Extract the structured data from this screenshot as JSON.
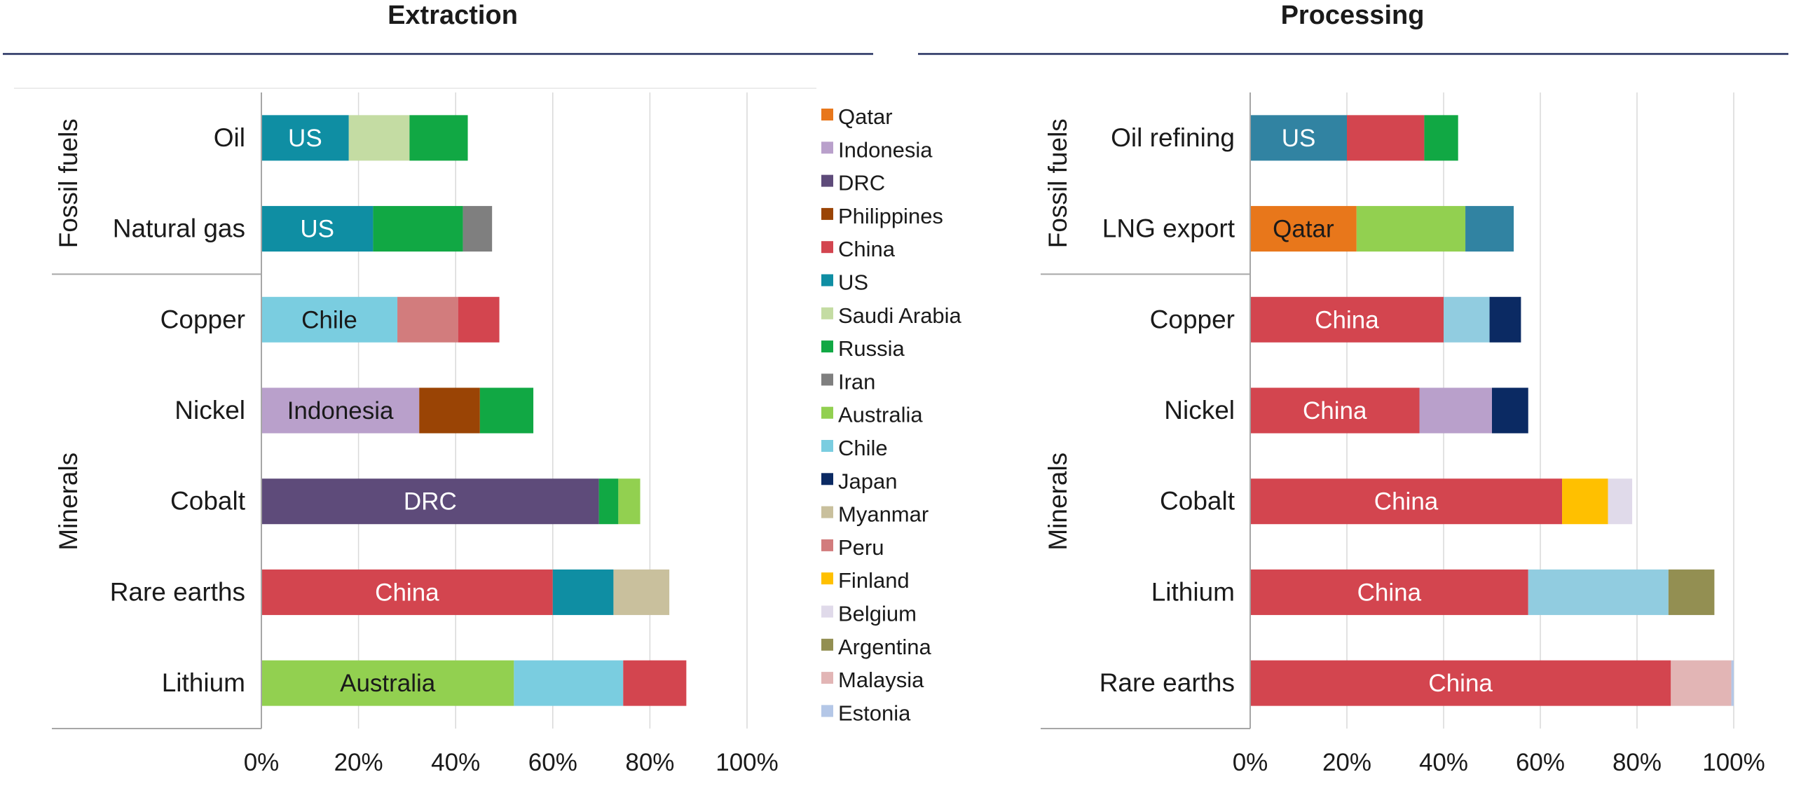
{
  "headers": {
    "left": "Extraction",
    "right": "Processing"
  },
  "colors": {
    "Qatar": "#E8771B",
    "Indonesia": "#B9A0CB",
    "DRC": "#5E4B7A",
    "Philippines": "#9A4405",
    "China": "#D3454F",
    "US": "#0F8EA3",
    "US_processing": "#3183A2",
    "Saudi Arabia": "#C4DCA3",
    "Russia": "#11A844",
    "Iran": "#7F7F7F",
    "Australia": "#92D050",
    "Chile": "#7ACDE0",
    "Chile_processing": "#91CCE0",
    "Japan": "#0B2A63",
    "Myanmar": "#C9C09D",
    "Peru": "#D27C7D",
    "Finland": "#FFC000",
    "Belgium": "#E0DAEA",
    "Argentina": "#938F52",
    "Malaysia": "#E2B5B5",
    "Estonia": "#B4C7E7"
  },
  "legend": [
    "Qatar",
    "Indonesia",
    "DRC",
    "Philippines",
    "China",
    "US",
    "Saudi Arabia",
    "Russia",
    "Iran",
    "Australia",
    "Chile",
    "Japan",
    "Myanmar",
    "Peru",
    "Finland",
    "Belgium",
    "Argentina",
    "Malaysia",
    "Estonia"
  ],
  "chart_data": [
    {
      "type": "bar",
      "orientation": "horizontal",
      "stacked": true,
      "title": "Extraction",
      "xlim": [
        0,
        100
      ],
      "x_ticks": [
        "0%",
        "20%",
        "40%",
        "60%",
        "80%",
        "100%"
      ],
      "grid": true,
      "groups": [
        {
          "label": "Fossil fuels",
          "categories": [
            "Oil",
            "Natural gas"
          ]
        },
        {
          "label": "Minerals",
          "categories": [
            "Copper",
            "Nickel",
            "Cobalt",
            "Rare earths",
            "Lithium"
          ]
        }
      ],
      "categories": [
        "Oil",
        "Natural gas",
        "Copper",
        "Nickel",
        "Cobalt",
        "Rare earths",
        "Lithium"
      ],
      "bars": [
        {
          "category": "Oil",
          "segments": [
            {
              "country": "US",
              "value": 18,
              "label": "US"
            },
            {
              "country": "Saudi Arabia",
              "value": 12.5
            },
            {
              "country": "Russia",
              "value": 12
            }
          ]
        },
        {
          "category": "Natural gas",
          "segments": [
            {
              "country": "US",
              "value": 23,
              "label": "US"
            },
            {
              "country": "Russia",
              "value": 18.5
            },
            {
              "country": "Iran",
              "value": 6
            }
          ]
        },
        {
          "category": "Copper",
          "segments": [
            {
              "country": "Chile",
              "value": 28,
              "label": "Chile"
            },
            {
              "country": "Peru",
              "value": 12.5
            },
            {
              "country": "China",
              "value": 8.5
            }
          ]
        },
        {
          "category": "Nickel",
          "segments": [
            {
              "country": "Indonesia",
              "value": 32.5,
              "label": "Indonesia"
            },
            {
              "country": "Philippines",
              "value": 12.5
            },
            {
              "country": "Russia",
              "value": 11
            }
          ]
        },
        {
          "category": "Cobalt",
          "segments": [
            {
              "country": "DRC",
              "value": 69.5,
              "label": "DRC"
            },
            {
              "country": "Russia",
              "value": 4
            },
            {
              "country": "Australia",
              "value": 4.5
            }
          ]
        },
        {
          "category": "Rare earths",
          "segments": [
            {
              "country": "China",
              "value": 60,
              "label": "China"
            },
            {
              "country": "US",
              "value": 12.5
            },
            {
              "country": "Myanmar",
              "value": 11.5
            }
          ]
        },
        {
          "category": "Lithium",
          "segments": [
            {
              "country": "Australia",
              "value": 52,
              "label": "Australia"
            },
            {
              "country": "Chile",
              "value": 22.5
            },
            {
              "country": "China",
              "value": 13
            }
          ]
        }
      ]
    },
    {
      "type": "bar",
      "orientation": "horizontal",
      "stacked": true,
      "title": "Processing",
      "xlim": [
        0,
        100
      ],
      "x_ticks": [
        "0%",
        "20%",
        "40%",
        "60%",
        "80%",
        "100%"
      ],
      "grid": true,
      "groups": [
        {
          "label": "Fossil fuels",
          "categories": [
            "Oil refining",
            "LNG export"
          ]
        },
        {
          "label": "Minerals",
          "categories": [
            "Copper",
            "Nickel",
            "Cobalt",
            "Lithium",
            "Rare earths"
          ]
        }
      ],
      "categories": [
        "Oil refining",
        "LNG export",
        "Copper",
        "Nickel",
        "Cobalt",
        "Lithium",
        "Rare earths"
      ],
      "bars": [
        {
          "category": "Oil refining",
          "segments": [
            {
              "country": "US",
              "value": 20,
              "label": "US"
            },
            {
              "country": "China",
              "value": 16
            },
            {
              "country": "Russia",
              "value": 7
            }
          ]
        },
        {
          "category": "LNG export",
          "segments": [
            {
              "country": "Qatar",
              "value": 22,
              "label": "Qatar"
            },
            {
              "country": "Australia",
              "value": 22.5
            },
            {
              "country": "US",
              "value": 10
            }
          ]
        },
        {
          "category": "Copper",
          "segments": [
            {
              "country": "China",
              "value": 40,
              "label": "China"
            },
            {
              "country": "Chile",
              "value": 9.5
            },
            {
              "country": "Japan",
              "value": 6.5
            }
          ]
        },
        {
          "category": "Nickel",
          "segments": [
            {
              "country": "China",
              "value": 35,
              "label": "China"
            },
            {
              "country": "Indonesia",
              "value": 15
            },
            {
              "country": "Japan",
              "value": 7.5
            }
          ]
        },
        {
          "category": "Cobalt",
          "segments": [
            {
              "country": "China",
              "value": 64.5,
              "label": "China"
            },
            {
              "country": "Finland",
              "value": 9.5
            },
            {
              "country": "Belgium",
              "value": 5
            }
          ]
        },
        {
          "category": "Lithium",
          "segments": [
            {
              "country": "China",
              "value": 57.5,
              "label": "China"
            },
            {
              "country": "Chile",
              "value": 29
            },
            {
              "country": "Argentina",
              "value": 9.5
            }
          ]
        },
        {
          "category": "Rare earths",
          "segments": [
            {
              "country": "China",
              "value": 87,
              "label": "China"
            },
            {
              "country": "Malaysia",
              "value": 12.5
            },
            {
              "country": "Estonia",
              "value": 0.5
            }
          ]
        }
      ]
    }
  ]
}
